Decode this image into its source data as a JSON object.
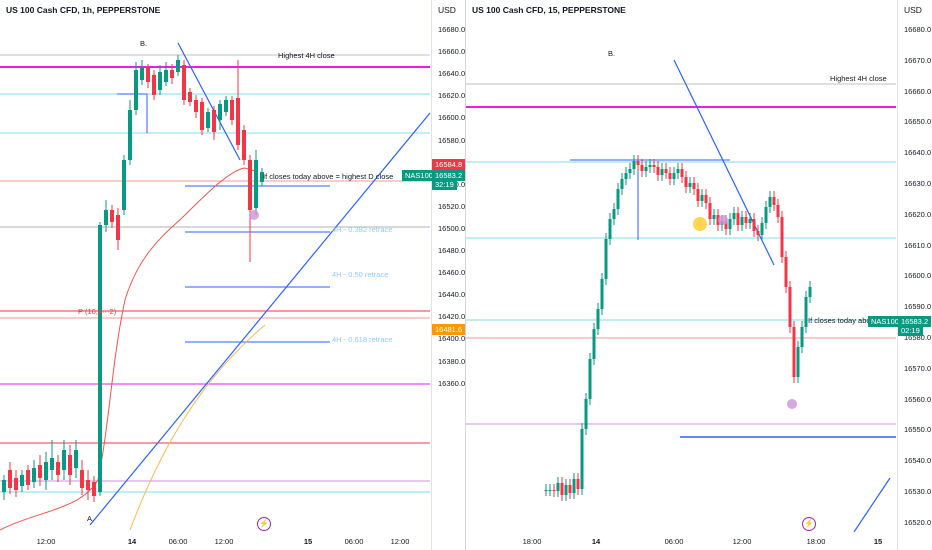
{
  "colors": {
    "bull": "#089981",
    "bear": "#f23645",
    "magenta": "#e91ee0",
    "blue": "#2962ff",
    "lightblue": "#90caf9",
    "cyan": "#80deea",
    "salmon": "#ef9a9a",
    "pink": "#f48fb1",
    "ma": "#ef5350"
  },
  "left": {
    "title": "US 100 Cash CFD, 1h, PEPPERSTONE",
    "currency": "USD",
    "price_ticks": [
      "16680.0",
      "16660.0",
      "16640.0",
      "16620.0",
      "16600.0",
      "16580.0",
      "16560.0",
      "16540.0",
      "16520.0",
      "16500.0",
      "16480.0",
      "16460.0",
      "16440.0",
      "16420.0",
      "16400.0",
      "16380.0",
      "16360.0"
    ],
    "time_ticks": [
      {
        "label": "12:00",
        "bold": false
      },
      {
        "label": "14",
        "bold": true
      },
      {
        "label": "06:00",
        "bold": false
      },
      {
        "label": "12:00",
        "bold": false
      },
      {
        "label": "15",
        "bold": true
      },
      {
        "label": "06:00",
        "bold": false
      },
      {
        "label": "12:00",
        "bold": false
      }
    ],
    "annotations": {
      "b": "B.",
      "a": "A.",
      "highest4h": "Highest 4H close",
      "closes": "If closes today above = highest D close",
      "fib382": "4H - 0.382 retrace",
      "fib50": "4H - 0.50 retrace",
      "fib618": "4H - 0.618 retrace",
      "pivot": "P (16,4···2)"
    },
    "badges": {
      "red_price": "16584.8",
      "symbol": "NAS100",
      "price": "16583.2",
      "countdown": "32:19",
      "orange_price": "16481.6"
    }
  },
  "right": {
    "title": "US 100 Cash CFD, 15, PEPPERSTONE",
    "currency": "USD",
    "price_ticks": [
      "16680.0",
      "16670.0",
      "16660.0",
      "16650.0",
      "16640.0",
      "16630.0",
      "16620.0",
      "16610.0",
      "16600.0",
      "16590.0",
      "16580.0",
      "16570.0",
      "16560.0",
      "16550.0",
      "16540.0",
      "16530.0",
      "16520.0"
    ],
    "time_ticks": [
      {
        "label": "18:00",
        "bold": false
      },
      {
        "label": "14",
        "bold": true
      },
      {
        "label": "06:00",
        "bold": false
      },
      {
        "label": "12:00",
        "bold": false
      },
      {
        "label": "18:00",
        "bold": false
      },
      {
        "label": "15",
        "bold": true
      }
    ],
    "annotations": {
      "b": "B.",
      "highest4h": "Highest 4H close",
      "closes": "If closes today above"
    },
    "badges": {
      "symbol": "NAS100",
      "price": "16583.2",
      "countdown": "02:19"
    }
  }
}
